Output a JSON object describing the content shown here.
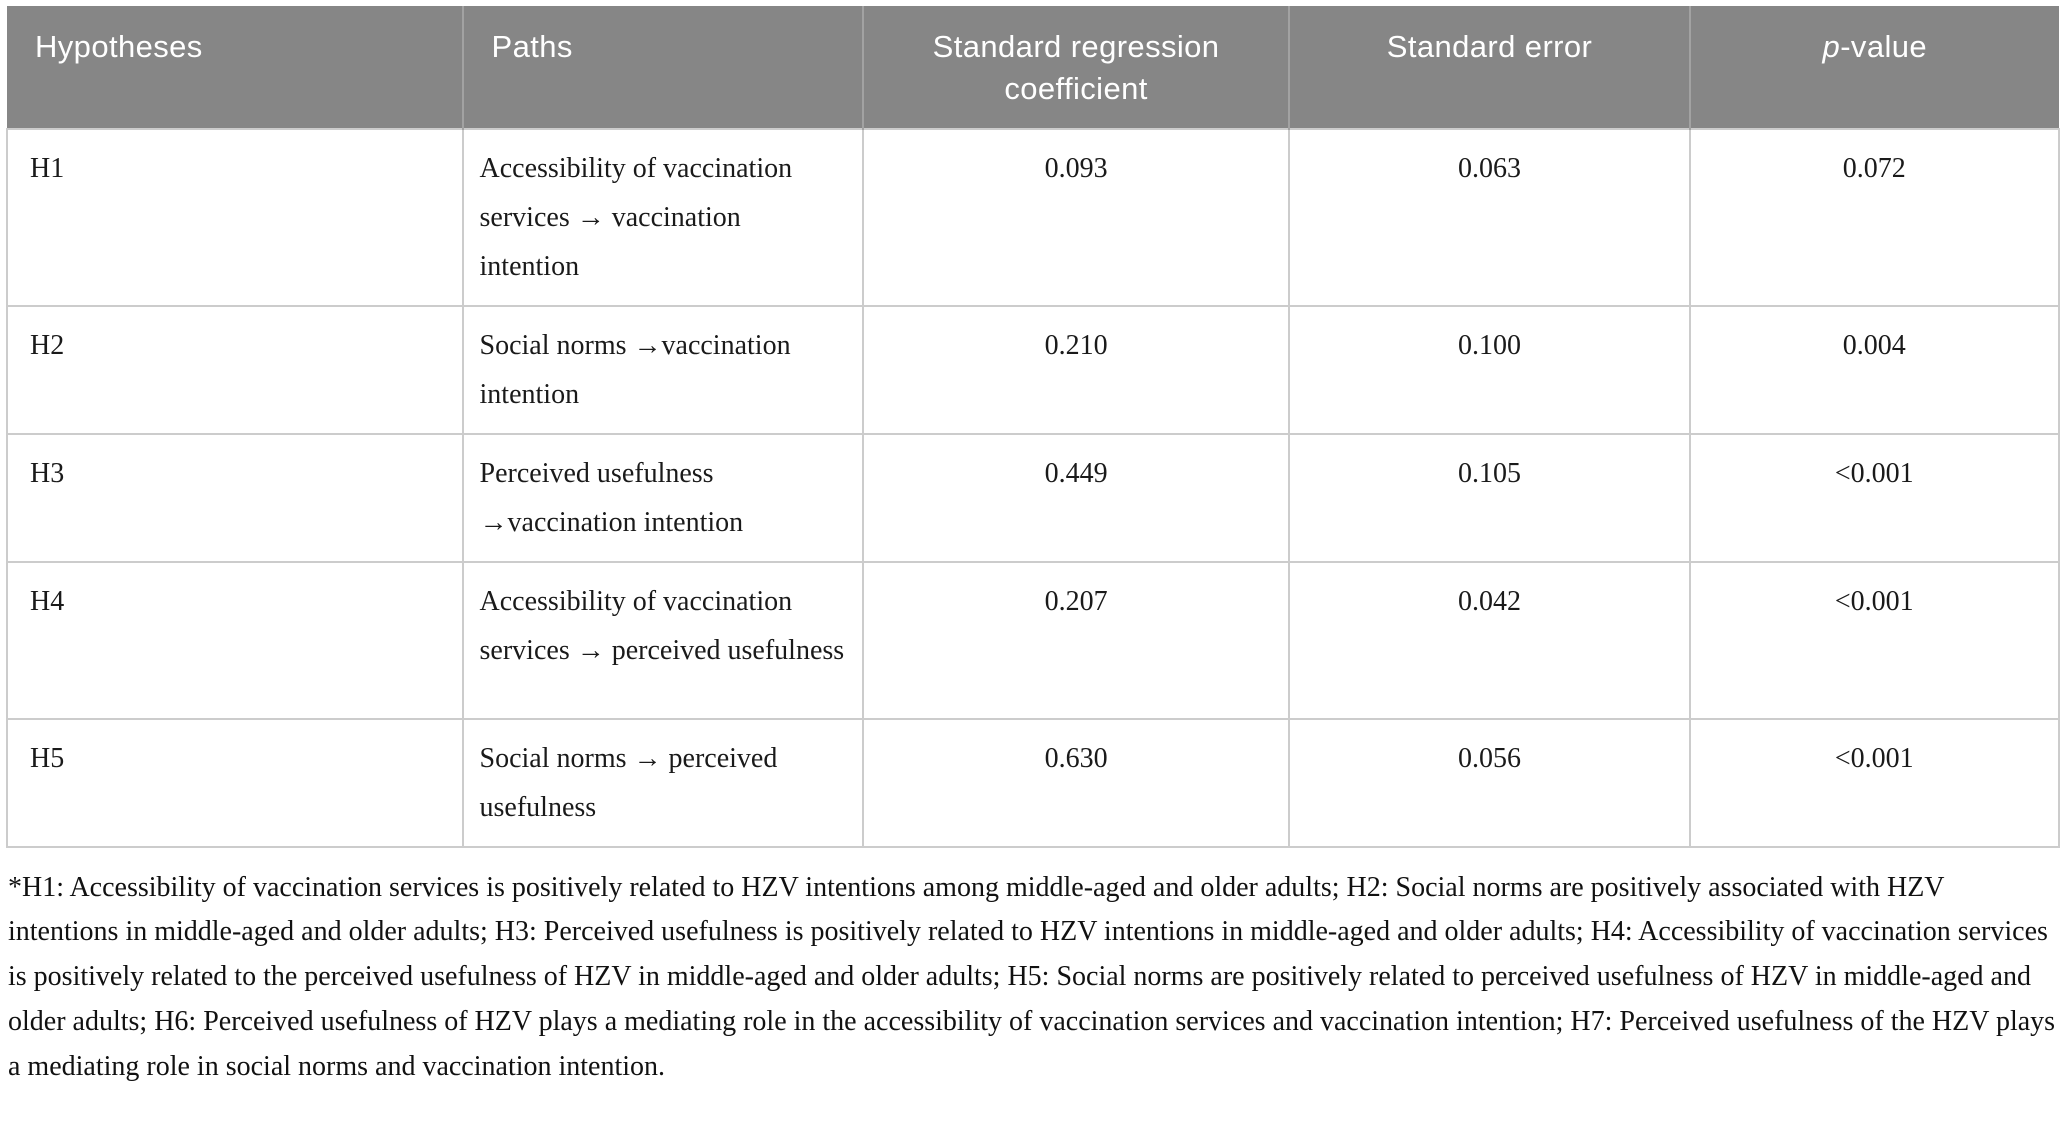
{
  "table": {
    "header": {
      "hypotheses": "Hypotheses",
      "paths": "Paths",
      "coefficient": "Standard regression coefficient",
      "standard_error": "Standard error",
      "p_value_italic": "p",
      "p_value_suffix": "-value",
      "p_value_full": "p-value"
    },
    "rows": [
      {
        "hypothesis": "H1",
        "path": "Accessibility of vaccination services → vaccination intention",
        "coefficient": "0.093",
        "standard_error": "0.063",
        "p_value": "0.072"
      },
      {
        "hypothesis": "H2",
        "path": "Social norms →vaccination intention",
        "coefficient": "0.210",
        "standard_error": "0.100",
        "p_value": "0.004"
      },
      {
        "hypothesis": "H3",
        "path": "Perceived usefulness →vaccination intention",
        "coefficient": "0.449",
        "standard_error": "0.105",
        "p_value": "<0.001"
      },
      {
        "hypothesis": "H4",
        "path": "Accessibility of vaccination services → perceived usefulness",
        "coefficient": "0.207",
        "standard_error": "0.042",
        "p_value": "<0.001"
      },
      {
        "hypothesis": "H5",
        "path": "Social norms → perceived usefulness",
        "coefficient": "0.630",
        "standard_error": "0.056",
        "p_value": "<0.001"
      }
    ],
    "footnote": "*H1: Accessibility of vaccination services is positively related to HZV intentions among middle-aged and older adults; H2: Social norms are positively associated with HZV intentions in middle-aged and older adults; H3: Perceived usefulness is positively related to HZV intentions in middle-aged and older adults; H4: Accessibility of vaccination services is positively related to the perceived usefulness of HZV in middle-aged and older adults; H5: Social norms are positively related to perceived usefulness of HZV in middle-aged and older adults; H6: Perceived usefulness of HZV plays a mediating role in the accessibility of vaccination services and vaccination intention; H7: Perceived usefulness of the HZV plays a mediating role in social norms and vaccination intention."
  },
  "colors": {
    "header_bg": "#868686",
    "header_text": "#ffffff",
    "header_divider": "#a2a2a2",
    "cell_border": "#cccccc",
    "body_text": "#1a1a1a"
  }
}
